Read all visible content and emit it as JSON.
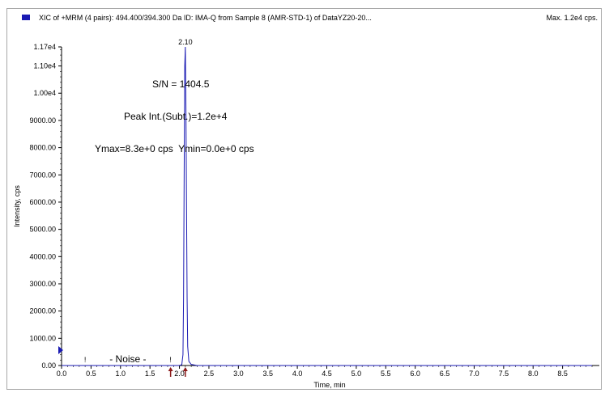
{
  "window": {
    "title": "XIC of +MRM (4 pairs): 494.400/394.300 Da ID: IMA-Q from Sample 8 (AMR-STD-1) of DataYZ20-20...",
    "max_label": "Max. 1.2e4 cps."
  },
  "colors": {
    "trace": "#1a1ab3",
    "marker": "#8b1a1a",
    "border": "#a8a8a8"
  },
  "chart_data": {
    "type": "line",
    "xlabel": "Time, min",
    "ylabel": "Intensity, cps",
    "xlim": [
      0,
      9.0
    ],
    "ylim": [
      0,
      11700
    ],
    "x_ticks": [
      "0.0",
      "0.5",
      "1.0",
      "1.5",
      "2.0",
      "2.5",
      "3.0",
      "3.5",
      "4.0",
      "4.5",
      "5.0",
      "5.5",
      "6.0",
      "6.5",
      "7.0",
      "7.5",
      "8.0",
      "8.5"
    ],
    "y_ticks": [
      {
        "label": "0.00",
        "value": 0
      },
      {
        "label": "1000.00",
        "value": 1000
      },
      {
        "label": "2000.00",
        "value": 2000
      },
      {
        "label": "3000.00",
        "value": 3000
      },
      {
        "label": "4000.00",
        "value": 4000
      },
      {
        "label": "5000.00",
        "value": 5000
      },
      {
        "label": "6000.00",
        "value": 6000
      },
      {
        "label": "7000.00",
        "value": 7000
      },
      {
        "label": "8000.00",
        "value": 8000
      },
      {
        "label": "9000.00",
        "value": 9000
      },
      {
        "label": "1.00e4",
        "value": 10000
      },
      {
        "label": "1.10e4",
        "value": 11000
      },
      {
        "label": "1.17e4",
        "value": 11700
      }
    ],
    "series": [
      {
        "x": [
          0.0,
          1.8,
          2.0,
          2.04,
          2.06,
          2.07,
          2.08,
          2.09,
          2.1,
          2.11,
          2.12,
          2.13,
          2.14,
          2.16,
          2.2,
          2.3,
          9.0
        ],
        "y": [
          0,
          0,
          0,
          30,
          400,
          2500,
          7000,
          11000,
          11700,
          9500,
          6000,
          2500,
          700,
          150,
          40,
          0,
          0
        ]
      }
    ],
    "peak_label": {
      "x": 2.1,
      "text": "2.10"
    },
    "annotations": {
      "sn": "S/N = 1404.5",
      "peak_int": "Peak Int.(Subt.)=1.2e+4",
      "yrange": "Ymax=8.3e+0 cps  Ymin=0.0e+0 cps"
    },
    "noise": {
      "label": "- Noise -",
      "marker_left": "!",
      "marker_right": "!",
      "x_start": 0.4,
      "x_end": 1.85
    },
    "integration_markers": [
      1.85,
      2.1
    ],
    "grid": false,
    "legend": "top-left"
  }
}
